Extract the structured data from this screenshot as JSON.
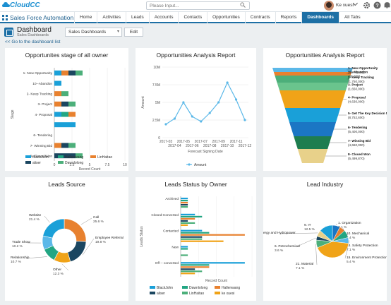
{
  "app": {
    "logo": "CloudCC",
    "search_placeholder": "Please Input...",
    "user_name": "Ke xuesi",
    "name": "Sales Force Automation"
  },
  "nav": {
    "tabs": [
      "Home",
      "Activities",
      "Leads",
      "Accounts",
      "Contacts",
      "Opportunities",
      "Contracts",
      "Reports",
      "Dashboards",
      "All Tabs"
    ],
    "active": "Dashboards"
  },
  "header": {
    "title": "Dashboard",
    "subtitle": "Sales Dashboards",
    "select_value": "Sales Dashboards",
    "edit_label": "Edit",
    "back_link": "<< Go to the dashboard list"
  },
  "colors": {
    "blue": "#1aa0d8",
    "teal": "#22a683",
    "orange": "#e8812f",
    "navy": "#1b4660",
    "green": "#4caf7a",
    "lightblue": "#5bb8e8",
    "primary": "#1d6fa5"
  },
  "panels": {
    "p1_title": "Opportunites stage of all owner",
    "p2_title": "Opportunities Analysis Report",
    "p3_title": "Opportunities Analysis Report",
    "p4_title": "Leads Source",
    "p5_title": "Leads Status by Owner",
    "p6_title": "Lead Industry"
  },
  "chart_data": [
    {
      "type": "bar",
      "orientation": "horizontal",
      "stacked": true,
      "title": "Opportunites stage of all owner",
      "ylabel": "Stage",
      "xlabel": "Record Count",
      "xlim": [
        0,
        10
      ],
      "xticks": [
        "0",
        "2.5",
        "5",
        "7.5",
        "10"
      ],
      "categories": [
        "1- New Opportunity",
        "10--Abandon",
        "2- Keep Tracking",
        "3- Project",
        "4- Proposal",
        "",
        "6- Tendering",
        "7- Winning Bid",
        "8- Closed Won"
      ],
      "series": [
        {
          "name": "BlackJohn",
          "color": "#1aa0d8",
          "values": [
            1,
            1,
            0,
            0,
            1,
            3,
            0,
            0,
            0
          ]
        },
        {
          "name": "Hallenwang",
          "color": "#22a683",
          "values": [
            0,
            0,
            0,
            0,
            1,
            0,
            0,
            0,
            0
          ]
        },
        {
          "name": "LinHaitao",
          "color": "#e8812f",
          "values": [
            1,
            0,
            1,
            1,
            1,
            0,
            0,
            1,
            0
          ]
        },
        {
          "name": "aliser",
          "color": "#1b4660",
          "values": [
            1,
            0,
            0,
            1,
            0,
            0,
            0,
            1,
            3
          ]
        },
        {
          "name": "Dawnlolong",
          "color": "#4caf7a",
          "values": [
            1,
            0,
            1,
            1,
            0,
            0,
            0,
            1,
            1
          ]
        }
      ],
      "legend": [
        "BlackJohn",
        "Hallenwang",
        "LinHaitao",
        "aliser",
        "Dawnlolong"
      ]
    },
    {
      "type": "line",
      "title": "Opportunities Analysis Report",
      "xlabel": "Forecast Signing Date",
      "ylabel": "Amount",
      "x": [
        "2017-03",
        "2017-04",
        "2017-05",
        "2017-06",
        "2017-07",
        "2017-08",
        "2017-09",
        "2017-10",
        "2017-11",
        "2017-12"
      ],
      "xticks_top": [
        "2017-03",
        "2017-05",
        "2017-07",
        "2017-09",
        "2017-11"
      ],
      "xticks_bottom": [
        "2017-04",
        "2017-06",
        "2017-08",
        "2017-10",
        "2017-12"
      ],
      "yticks": [
        "0",
        "2.5M",
        "5M",
        "7.5M",
        "10M"
      ],
      "ylim": [
        0,
        10000000
      ],
      "series": [
        {
          "name": "Amount",
          "color": "#5bb8e8",
          "values": [
            1900000,
            2700000,
            5000000,
            3000000,
            2300000,
            3500000,
            5000000,
            7800000,
            5400000,
            2500000
          ]
        }
      ]
    },
    {
      "type": "funnel",
      "title": "Opportunities Analysis Report",
      "stages": [
        {
          "label": "1- New Opportunity",
          "value": "(1,770,000)",
          "color": "#5bb8e8"
        },
        {
          "label": "10--Abandon",
          "value": "(88,000)",
          "color": "#e8812f"
        },
        {
          "label": "2- Keep Tracking",
          "value": "(1,750,000)",
          "color": "#4caf7a"
        },
        {
          "label": "3- Project",
          "value": "(1,650,000)",
          "color": "#6ac48d"
        },
        {
          "label": "4- Proposal",
          "value": "(4,630,000)",
          "color": "#f0a318"
        },
        {
          "label": "5- Get The Key Decision Maker",
          "value": "(8,752,600)",
          "color": "#1aa0d8"
        },
        {
          "label": "6- Tendering",
          "value": "(5,400,000)",
          "color": "#1b76c4"
        },
        {
          "label": "7- Winning Bid",
          "value": "(4,660,000)",
          "color": "#1e7d4f"
        },
        {
          "label": "8- Closed Won",
          "value": "(5,499,870)",
          "color": "#e8d18a"
        }
      ]
    },
    {
      "type": "pie",
      "donut": true,
      "title": "Leads Source",
      "slices": [
        {
          "label": "Call",
          "pct": "25.6 %",
          "value": 25.6,
          "color": "#e8812f"
        },
        {
          "label": "Employee Referral",
          "pct": "19.8 %",
          "value": 19.8,
          "color": "#1b4660"
        },
        {
          "label": "Other",
          "pct": "12.3 %",
          "value": 12.3,
          "color": "#f0a318"
        },
        {
          "label": "Relationship",
          "pct": "10.7 %",
          "value": 10.7,
          "color": "#22a683"
        },
        {
          "label": "Trade Show",
          "pct": "10.2 %",
          "value": 10.2,
          "color": "#5bb8e8"
        },
        {
          "label": "Website",
          "pct": "21.4 %",
          "value": 21.4,
          "color": "#1aa0d8"
        }
      ]
    },
    {
      "type": "bar",
      "orientation": "horizontal",
      "title": "Leads Status by Owner",
      "ylabel": "Leads Status",
      "xlabel": "Record Count",
      "categories": [
        "Archived",
        "Closed-Converted",
        "Contacted",
        "New",
        "Off -- converted"
      ],
      "series": [
        {
          "name": "BlackJohn",
          "color": "#1aa0d8",
          "values": [
            1,
            2,
            3,
            1,
            9
          ]
        },
        {
          "name": "Dawnlolong",
          "color": "#22a683",
          "values": [
            1,
            3,
            4,
            1,
            4
          ]
        },
        {
          "name": "Hallenwang",
          "color": "#e8812f",
          "values": [
            1,
            2,
            9,
            0,
            4
          ]
        },
        {
          "name": "aliser",
          "color": "#1b4660",
          "values": [
            1,
            1,
            3,
            0,
            2
          ]
        },
        {
          "name": "LinHaitao",
          "color": "#4caf7a",
          "values": [
            1,
            2,
            3,
            1,
            3
          ]
        },
        {
          "name": "ke xuesi",
          "color": "#f0a318",
          "values": [
            0,
            1,
            6,
            0,
            2
          ]
        }
      ],
      "legend": [
        "BlackJohn",
        "Dawnlolong",
        "Hallenwang",
        "aliser",
        "LinHaitao",
        "ke xuesi"
      ]
    },
    {
      "type": "pie",
      "title": "Lead Industry",
      "slices": [
        {
          "label": "1. Organization",
          "pct": "7.1 %",
          "value": 7.1,
          "color": "#1b76c4"
        },
        {
          "label": "10. Mechanical",
          "pct": "5.4 %",
          "value": 5.4,
          "color": "#e8812f"
        },
        {
          "label": "14. Safety Protection",
          "pct": "7.1 %",
          "value": 7.1,
          "color": "#22a683"
        },
        {
          "label": "15. Environment Protection",
          "pct": "5.4 %",
          "value": 5.4,
          "color": "#5bb8e8"
        },
        {
          "label": "",
          "pct": "",
          "value": 38.9,
          "color": "#f0a318"
        },
        {
          "label": "21. Material",
          "pct": "7.1 %",
          "value": 7.1,
          "color": "#4caf7a"
        },
        {
          "label": "6. Petrochemical",
          "pct": "3.6 %",
          "value": 3.6,
          "color": "#1b4660"
        },
        {
          "label": "Energy and Hydropower",
          "pct": "",
          "value": 5.9,
          "color": "#e8d18a"
        },
        {
          "label": "9. IT",
          "pct": "12.5 %",
          "value": 12.5,
          "color": "#1aa0d8"
        }
      ]
    }
  ]
}
